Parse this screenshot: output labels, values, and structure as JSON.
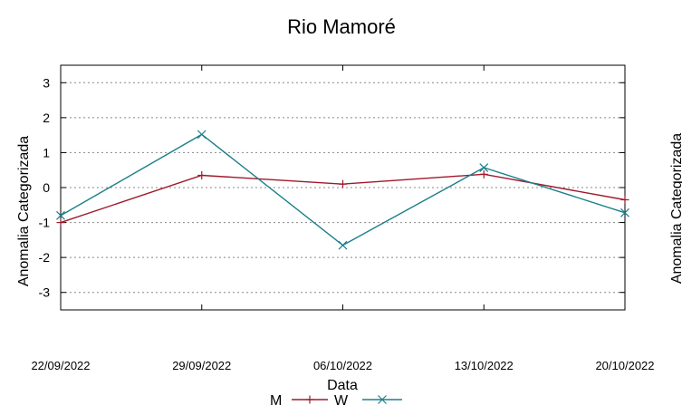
{
  "chart_data": {
    "type": "line",
    "title": "Rio Mamoré",
    "xlabel": "Data",
    "ylabel": "Anomalia Categorizada",
    "right_ylabel": "Anomalia Categorizada",
    "x": [
      "22/09/2022",
      "29/09/2022",
      "06/10/2022",
      "13/10/2022",
      "20/10/2022"
    ],
    "xtick_labels": [
      "22/09/2022",
      "29/09/2022",
      "06/10/2022",
      "13/10/2022",
      "20/10/2022"
    ],
    "yticks": [
      3,
      2,
      1,
      0,
      -1,
      -2,
      -3
    ],
    "ylim": [
      -3.5,
      3.5
    ],
    "grid": true,
    "legend_position": "bottom-center",
    "series": [
      {
        "name": "M",
        "values": [
          -1.0,
          0.35,
          0.1,
          0.38,
          -0.35
        ],
        "color": "#a0182a",
        "marker": "plus"
      },
      {
        "name": "W",
        "values": [
          -0.8,
          1.52,
          -1.65,
          0.57,
          -0.72
        ],
        "color": "#1b7f8a",
        "marker": "cross"
      }
    ]
  }
}
